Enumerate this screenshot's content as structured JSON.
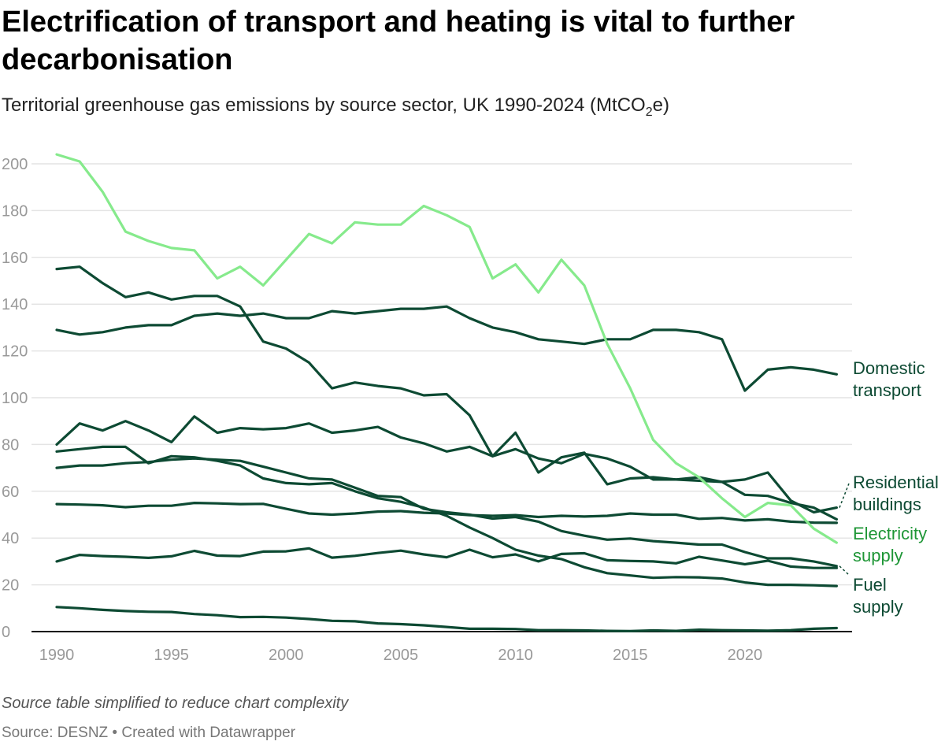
{
  "title": "Electrification of transport and heating is vital to further decarbonisation",
  "subtitle": {
    "text": "Territorial greenhouse gas emissions by source sector, UK 1990-2024 (MtCO",
    "sub": "2",
    "tail": "e)"
  },
  "note": "Source table simplified to reduce chart complexity",
  "source": "Source: DESNZ • Created with Datawrapper",
  "colors": {
    "dark": "#0d4a33",
    "electricity": "#86ea8c",
    "electricity_label": "#1e9636",
    "grid": "#e4e4e4"
  },
  "chart_data": {
    "type": "line",
    "x": [
      1990,
      1991,
      1992,
      1993,
      1994,
      1995,
      1996,
      1997,
      1998,
      1999,
      2000,
      2001,
      2002,
      2003,
      2004,
      2005,
      2006,
      2007,
      2008,
      2009,
      2010,
      2011,
      2012,
      2013,
      2014,
      2015,
      2016,
      2017,
      2018,
      2019,
      2020,
      2021,
      2022,
      2023,
      2024
    ],
    "ylim": [
      0,
      205
    ],
    "yticks": [
      0,
      20,
      40,
      60,
      80,
      100,
      120,
      140,
      160,
      180,
      200
    ],
    "xticks": [
      1990,
      1995,
      2000,
      2005,
      2010,
      2015,
      2020
    ],
    "grid": true,
    "series": [
      {
        "name": "Electricity supply",
        "highlight": true,
        "values": [
          204,
          201,
          188,
          171,
          167,
          164,
          163,
          151,
          156,
          148,
          159,
          170,
          166,
          175,
          174,
          174,
          182,
          178,
          173,
          151,
          157,
          145,
          159,
          148,
          123,
          104,
          82,
          72,
          66,
          57,
          49,
          55,
          54,
          44,
          38
        ]
      },
      {
        "name": "Domestic transport",
        "values": [
          129,
          127,
          128,
          130,
          131,
          131,
          135,
          136,
          135,
          136,
          134,
          134,
          137,
          136,
          137,
          138,
          138,
          139,
          134,
          130,
          128,
          125,
          124,
          123,
          125,
          125,
          129,
          129,
          128,
          125,
          103,
          112,
          113,
          112,
          110
        ]
      },
      {
        "name": "Residential buildings",
        "values": [
          80,
          89,
          86,
          90,
          86,
          81,
          92,
          85,
          87,
          86.5,
          87,
          89,
          85,
          86,
          87.5,
          83,
          80.5,
          77,
          79,
          75,
          78,
          74,
          72,
          76,
          74,
          70.5,
          65,
          65,
          64.5,
          64,
          65,
          68,
          56,
          51,
          53
        ]
      },
      {
        "values": [
          155,
          156,
          149,
          143,
          145,
          142,
          143.5,
          143.5,
          139,
          124,
          121,
          115,
          104,
          106.5,
          105,
          104,
          101,
          101.5,
          92.5,
          75,
          85,
          68,
          74.5,
          76.5,
          63,
          65.5,
          66,
          65,
          66,
          64,
          58.5,
          58,
          55,
          53,
          48
        ]
      },
      {
        "values": [
          77,
          78,
          79,
          79,
          72,
          75,
          74.5,
          73,
          71,
          65.5,
          63.5,
          63,
          63.5,
          60,
          57,
          55.5,
          53,
          49.5,
          44.5,
          40,
          35,
          32.5,
          31,
          27.5,
          25,
          24,
          23,
          23.3,
          23.2,
          22.7,
          21,
          20,
          20,
          19.8,
          19.5
        ]
      },
      {
        "name": "Fuel supply",
        "values": [
          70,
          71,
          71,
          72,
          72.5,
          73.5,
          74,
          73.5,
          73,
          70.5,
          68,
          65.5,
          65,
          61.5,
          58,
          57.5,
          52.5,
          51,
          50,
          48.3,
          49,
          47,
          43,
          41,
          39.3,
          39.8,
          38.7,
          38,
          37.2,
          37.2,
          34,
          31.3,
          31.3,
          30,
          28
        ]
      },
      {
        "values": [
          54.5,
          54.3,
          54,
          53.2,
          53.8,
          53.8,
          55,
          54.8,
          54.5,
          54.6,
          52.5,
          50.5,
          50,
          50.5,
          51.3,
          51.5,
          50.8,
          50.5,
          49.8,
          49.5,
          49.8,
          49,
          49.5,
          49.2,
          49.5,
          50.5,
          50,
          50,
          48.2,
          48.6,
          47.5,
          48,
          47,
          46.6,
          46.5
        ]
      },
      {
        "values": [
          30,
          32.8,
          32.3,
          32,
          31.5,
          32.2,
          34.5,
          32.5,
          32.3,
          34.2,
          34.3,
          35.6,
          31.6,
          32.4,
          33.6,
          34.6,
          33,
          31.8,
          35,
          31.8,
          33,
          30,
          33.2,
          33.5,
          30.5,
          30.2,
          30,
          29.2,
          32,
          30.4,
          28.8,
          30.3,
          27.8,
          27.2,
          27.2
        ]
      },
      {
        "values": [
          10.5,
          10,
          9.3,
          8.8,
          8.5,
          8.4,
          7.5,
          7,
          6.2,
          6.3,
          6,
          5.4,
          4.6,
          4.4,
          3.5,
          3.2,
          2.7,
          2,
          1.2,
          1.2,
          1.1,
          0.6,
          0.6,
          0.5,
          0.3,
          0.2,
          0.5,
          0.3,
          0.8,
          0.6,
          0.5,
          0.4,
          0.6,
          1.2,
          1.5
        ]
      }
    ],
    "labels": [
      {
        "text": [
          "Domestic",
          "transport"
        ],
        "series": 1
      },
      {
        "text": [
          "Residential",
          "buildings"
        ],
        "series": 2
      },
      {
        "text": [
          "Electricity",
          "supply"
        ],
        "series": 0
      },
      {
        "text": [
          "Fuel",
          "supply"
        ],
        "series": 5
      }
    ]
  }
}
